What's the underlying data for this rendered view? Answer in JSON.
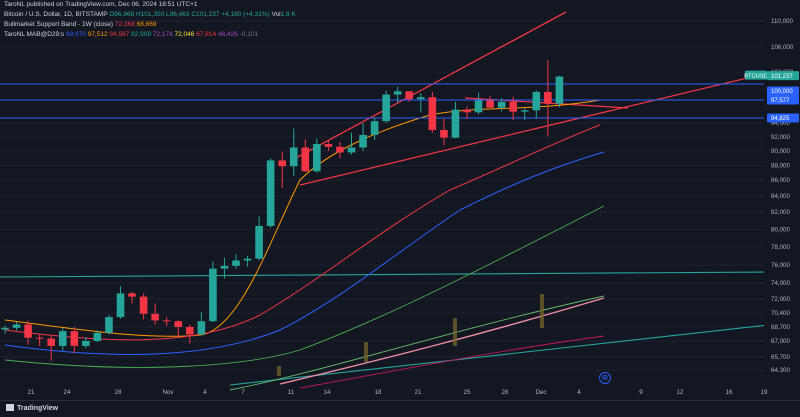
{
  "header": {
    "published": "TaroNL published on TradingView.com, Dec 06, 2024 18:51 UTC+1",
    "line1": {
      "name": "Bitcoin / U.S. Dollar, 1D, BITSTAMP",
      "o": "O96,968",
      "h": "H101,350",
      "l": "L96,463",
      "c": "C101,237",
      "chg": "+4,180 (+4.31%)",
      "vol": "Vol",
      "vol_val": "1.8 K"
    },
    "line2": {
      "name": "Bullmarket Support Band - 1W (close)",
      "v1": "72,368",
      "v2": "68,669"
    },
    "line3": {
      "name": "TaroNL MAB@D29;s",
      "v1": "89,970",
      "v2": "97,512",
      "v3": "94,587",
      "v4": "82,909",
      "v5": "72,174",
      "v6": "72,046",
      "v7": "67,814",
      "v8": "46,426",
      "v9": "-0,101"
    }
  },
  "chart_data": {
    "type": "candlestick",
    "symbol": "BTCUSD",
    "x": [
      "Oct 19",
      "Oct 20",
      "Oct 21",
      "Oct 22",
      "Oct 23",
      "Oct 24",
      "Oct 25",
      "Oct 26",
      "Oct 27",
      "Oct 28",
      "Oct 29",
      "Oct 30",
      "Oct 31",
      "Nov 1",
      "Nov 2",
      "Nov 3",
      "Nov 4",
      "Nov 5",
      "Nov 6",
      "Nov 7",
      "Nov 8",
      "Nov 9",
      "Nov 10",
      "Nov 11",
      "Nov 12",
      "Nov 13",
      "Nov 14",
      "Nov 15",
      "Nov 16",
      "Nov 17",
      "Nov 18",
      "Nov 19",
      "Nov 20",
      "Nov 21",
      "Nov 22",
      "Nov 23",
      "Nov 24",
      "Nov 25",
      "Nov 26",
      "Nov 27",
      "Nov 28",
      "Nov 29",
      "Nov 30",
      "Dec 1",
      "Dec 2",
      "Dec 3",
      "Dec 4",
      "Dec 5",
      "Dec 6"
    ],
    "ohlc": [
      [
        68400,
        68900,
        67900,
        68600
      ],
      [
        68600,
        69300,
        68300,
        69000
      ],
      [
        69000,
        69500,
        66700,
        67400
      ],
      [
        67400,
        67800,
        66600,
        67300
      ],
      [
        67300,
        67600,
        65300,
        66600
      ],
      [
        66600,
        68600,
        66200,
        68200
      ],
      [
        68200,
        68700,
        66000,
        66600
      ],
      [
        66600,
        67500,
        66400,
        67000
      ],
      [
        67000,
        68300,
        66900,
        68000
      ],
      [
        68000,
        70200,
        67800,
        69900
      ],
      [
        69900,
        73600,
        69700,
        72700
      ],
      [
        72700,
        72900,
        71500,
        72300
      ],
      [
        72300,
        72700,
        69600,
        70300
      ],
      [
        70300,
        71500,
        69000,
        69500
      ],
      [
        69500,
        69900,
        68800,
        69400
      ],
      [
        69400,
        69500,
        67500,
        68700
      ],
      [
        68700,
        69000,
        66800,
        67800
      ],
      [
        67800,
        70500,
        67700,
        69400
      ],
      [
        69400,
        76400,
        69300,
        75600
      ],
      [
        75600,
        76800,
        74500,
        75900
      ],
      [
        75900,
        77200,
        75600,
        76500
      ],
      [
        76500,
        77000,
        75800,
        76700
      ],
      [
        76700,
        81500,
        76500,
        80400
      ],
      [
        80400,
        89000,
        80200,
        88700
      ],
      [
        88700,
        89900,
        85000,
        87900
      ],
      [
        87900,
        93200,
        86600,
        90500
      ],
      [
        90500,
        91700,
        87100,
        87200
      ],
      [
        87200,
        91800,
        87000,
        91000
      ],
      [
        91000,
        91500,
        90000,
        90600
      ],
      [
        90600,
        91300,
        89000,
        89800
      ],
      [
        89800,
        92600,
        89500,
        90500
      ],
      [
        90500,
        94000,
        90000,
        92300
      ],
      [
        92300,
        94900,
        91600,
        94300
      ],
      [
        94300,
        99000,
        94000,
        98400
      ],
      [
        98400,
        99600,
        97200,
        98900
      ],
      [
        98900,
        98800,
        97300,
        97700
      ],
      [
        97700,
        98600,
        95700,
        98000
      ],
      [
        98000,
        98800,
        92600,
        93000
      ],
      [
        93000,
        94700,
        90800,
        91900
      ],
      [
        91900,
        97300,
        91800,
        96100
      ],
      [
        96100,
        96600,
        94700,
        95700
      ],
      [
        95700,
        98700,
        95400,
        97500
      ],
      [
        97500,
        98200,
        96400,
        96400
      ],
      [
        96400,
        97900,
        95800,
        97300
      ],
      [
        97300,
        98100,
        94500,
        95800
      ],
      [
        95800,
        96300,
        94500,
        96000
      ],
      [
        96000,
        99000,
        94700,
        98800
      ],
      [
        98800,
        103900,
        92100,
        97000
      ],
      [
        97000,
        101350,
        96463,
        101237
      ]
    ],
    "x_ticks": [
      "21",
      "24",
      "28",
      "Nov",
      "4",
      "7",
      "11",
      "14",
      "18",
      "21",
      "25",
      "28",
      "Dec",
      "4",
      "9",
      "12",
      "16",
      "19"
    ],
    "y_ticks": [
      110000,
      106000,
      102000,
      94000,
      92000,
      90000,
      88000,
      86000,
      84000,
      82000,
      80000,
      78000,
      76000,
      74000,
      72000,
      70400,
      68700,
      67000,
      65700,
      64300
    ],
    "price_labels": [
      {
        "text": "BTCUSD",
        "value": 101237,
        "color": "#26a69a"
      },
      {
        "text": "101,237",
        "value": 101237,
        "color": "#26a69a"
      },
      {
        "text": "100,000",
        "value": 100000,
        "color": "#2962ff"
      },
      {
        "text": "97,577",
        "value": 97577,
        "color": "#2962ff"
      },
      {
        "text": "94,825",
        "value": 94825,
        "color": "#2962ff"
      }
    ],
    "horizontal_levels": [
      100000,
      97577,
      94825
    ],
    "colors": {
      "up": "#26a69a",
      "down": "#f23645",
      "level": "#2962ff",
      "trend": "#f23645"
    }
  },
  "footer": {
    "brand": "TradingView"
  }
}
